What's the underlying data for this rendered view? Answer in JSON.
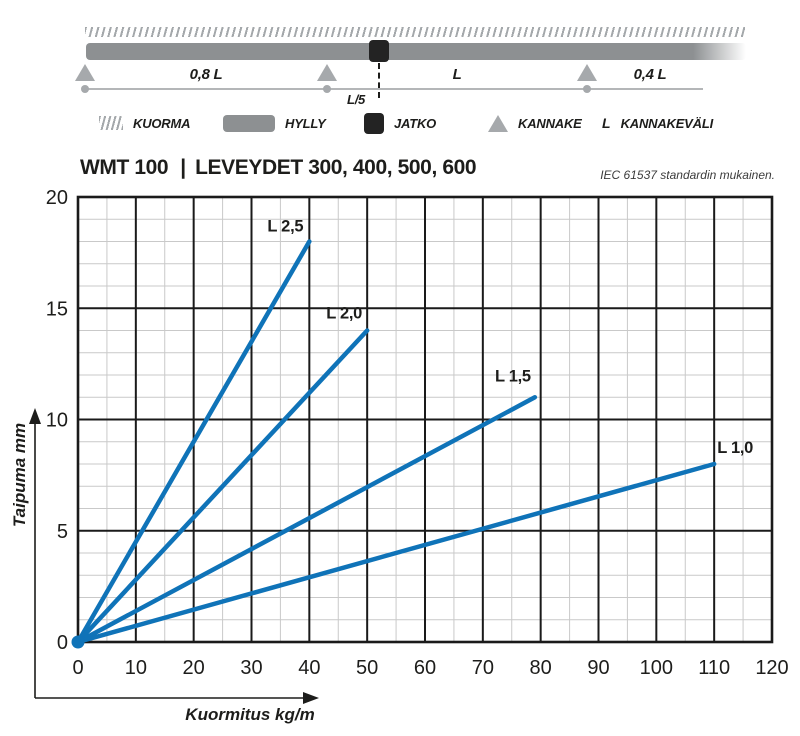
{
  "diagram": {
    "labels": {
      "span_left": "0,8 L",
      "span_mid": "L",
      "span_right": "0,4 L",
      "joint_offset": "L/5"
    }
  },
  "legend": {
    "items": [
      {
        "icon": "load-hatch-icon",
        "label": "KUORMA"
      },
      {
        "icon": "shelf-bar-icon",
        "label": "HYLLY"
      },
      {
        "icon": "joint-square-icon",
        "label": "JATKO"
      },
      {
        "icon": "support-triangle-icon",
        "label": "KANNAKE"
      },
      {
        "icon": "letter-L-symbol",
        "label": "KANNAKEVÄLI",
        "symbol": "L"
      }
    ]
  },
  "header": {
    "product": "WMT 100",
    "separator": "|",
    "subtitle": "LEVEYDET 300, 400, 500, 600",
    "standard_note": "IEC 61537 standardin mukainen."
  },
  "chart_data": {
    "type": "line",
    "title": "WMT 100 deflection vs load",
    "xlabel": "Kuormitus kg/m",
    "ylabel": "Taipuma mm",
    "xlim": [
      0,
      120
    ],
    "ylim": [
      0,
      20
    ],
    "x_ticks": [
      0,
      10,
      20,
      30,
      40,
      50,
      60,
      70,
      80,
      90,
      100,
      110,
      120
    ],
    "y_ticks": [
      0,
      5,
      10,
      15,
      20
    ],
    "x_major_step": 10,
    "x_minor_step": 5,
    "y_major_step": 5,
    "y_minor_step": 1,
    "grid": true,
    "legend_position": "inline-labels",
    "line_color": "#0f73b8",
    "grid_minor_color": "#c9c9c9",
    "grid_major_color": "#1a1a1a",
    "series": [
      {
        "name": "L 2,5",
        "x": [
          0,
          40
        ],
        "y": [
          0,
          18
        ],
        "label_dx": -24,
        "label_dy": -10
      },
      {
        "name": "L 2,0",
        "x": [
          0,
          50
        ],
        "y": [
          0,
          14
        ],
        "label_dx": -23,
        "label_dy": -12
      },
      {
        "name": "L 1,5",
        "x": [
          0,
          79
        ],
        "y": [
          0,
          11
        ],
        "label_dx": -22,
        "label_dy": -16
      },
      {
        "name": "L 1,0",
        "x": [
          0,
          110
        ],
        "y": [
          0,
          8
        ],
        "label_dx": 21,
        "label_dy": -11
      }
    ]
  }
}
